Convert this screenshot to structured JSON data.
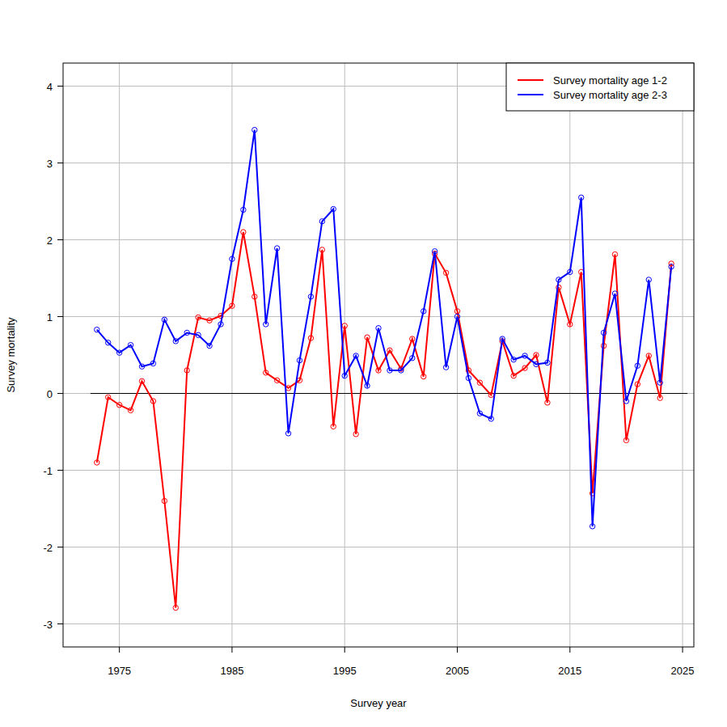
{
  "chart_data": {
    "type": "line",
    "x_label": "Survey year",
    "y_label": "Survey mortality",
    "x": [
      1973,
      1974,
      1975,
      1976,
      1977,
      1978,
      1979,
      1980,
      1981,
      1982,
      1983,
      1984,
      1985,
      1986,
      1987,
      1988,
      1989,
      1990,
      1991,
      1992,
      1993,
      1994,
      1995,
      1996,
      1997,
      1998,
      1999,
      2000,
      2001,
      2002,
      2003,
      2004,
      2005,
      2006,
      2007,
      2008,
      2009,
      2010,
      2011,
      2012,
      2013,
      2014,
      2015,
      2016,
      2017,
      2018,
      2019,
      2020,
      2021,
      2022,
      2023,
      2024
    ],
    "series": [
      {
        "name": "Survey mortality age 1-2",
        "color": "#ff0000",
        "marker": "circle",
        "values": [
          -0.9,
          -0.05,
          -0.15,
          -0.22,
          0.16,
          -0.1,
          -1.4,
          -2.79,
          0.3,
          0.99,
          0.95,
          1.01,
          1.14,
          2.1,
          1.26,
          0.27,
          0.17,
          0.07,
          0.17,
          0.72,
          1.87,
          -0.43,
          0.88,
          -0.53,
          0.73,
          0.3,
          0.56,
          0.32,
          0.71,
          0.22,
          1.82,
          1.57,
          1.07,
          0.3,
          0.14,
          -0.02,
          0.68,
          0.23,
          0.33,
          0.5,
          -0.12,
          1.38,
          0.9,
          1.58,
          -1.3,
          0.62,
          1.81,
          -0.61,
          0.12,
          0.49,
          -0.06,
          1.69
        ]
      },
      {
        "name": "Survey mortality age 2-3",
        "color": "#0000ff",
        "marker": "circle",
        "values": [
          0.83,
          0.66,
          0.53,
          0.63,
          0.35,
          0.39,
          0.96,
          0.68,
          0.79,
          0.76,
          0.62,
          0.9,
          1.75,
          2.39,
          3.43,
          0.9,
          1.89,
          -0.52,
          0.43,
          1.26,
          2.24,
          2.4,
          0.23,
          0.49,
          0.1,
          0.85,
          0.3,
          0.3,
          0.46,
          1.07,
          1.85,
          0.34,
          1.0,
          0.2,
          -0.26,
          -0.33,
          0.71,
          0.44,
          0.49,
          0.38,
          0.4,
          1.48,
          1.58,
          2.55,
          -1.73,
          0.79,
          1.3,
          -0.1,
          0.36,
          1.48,
          0.14,
          1.65
        ]
      }
    ],
    "xlim": [
      1970,
      2026
    ],
    "xticks": [
      1975,
      1985,
      1995,
      2005,
      2015,
      2025
    ],
    "ylim": [
      -3.3,
      4.3
    ],
    "yticks": [
      -3,
      -2,
      -1,
      0,
      1,
      2,
      3,
      4
    ],
    "grid": true,
    "legend": "topright"
  }
}
